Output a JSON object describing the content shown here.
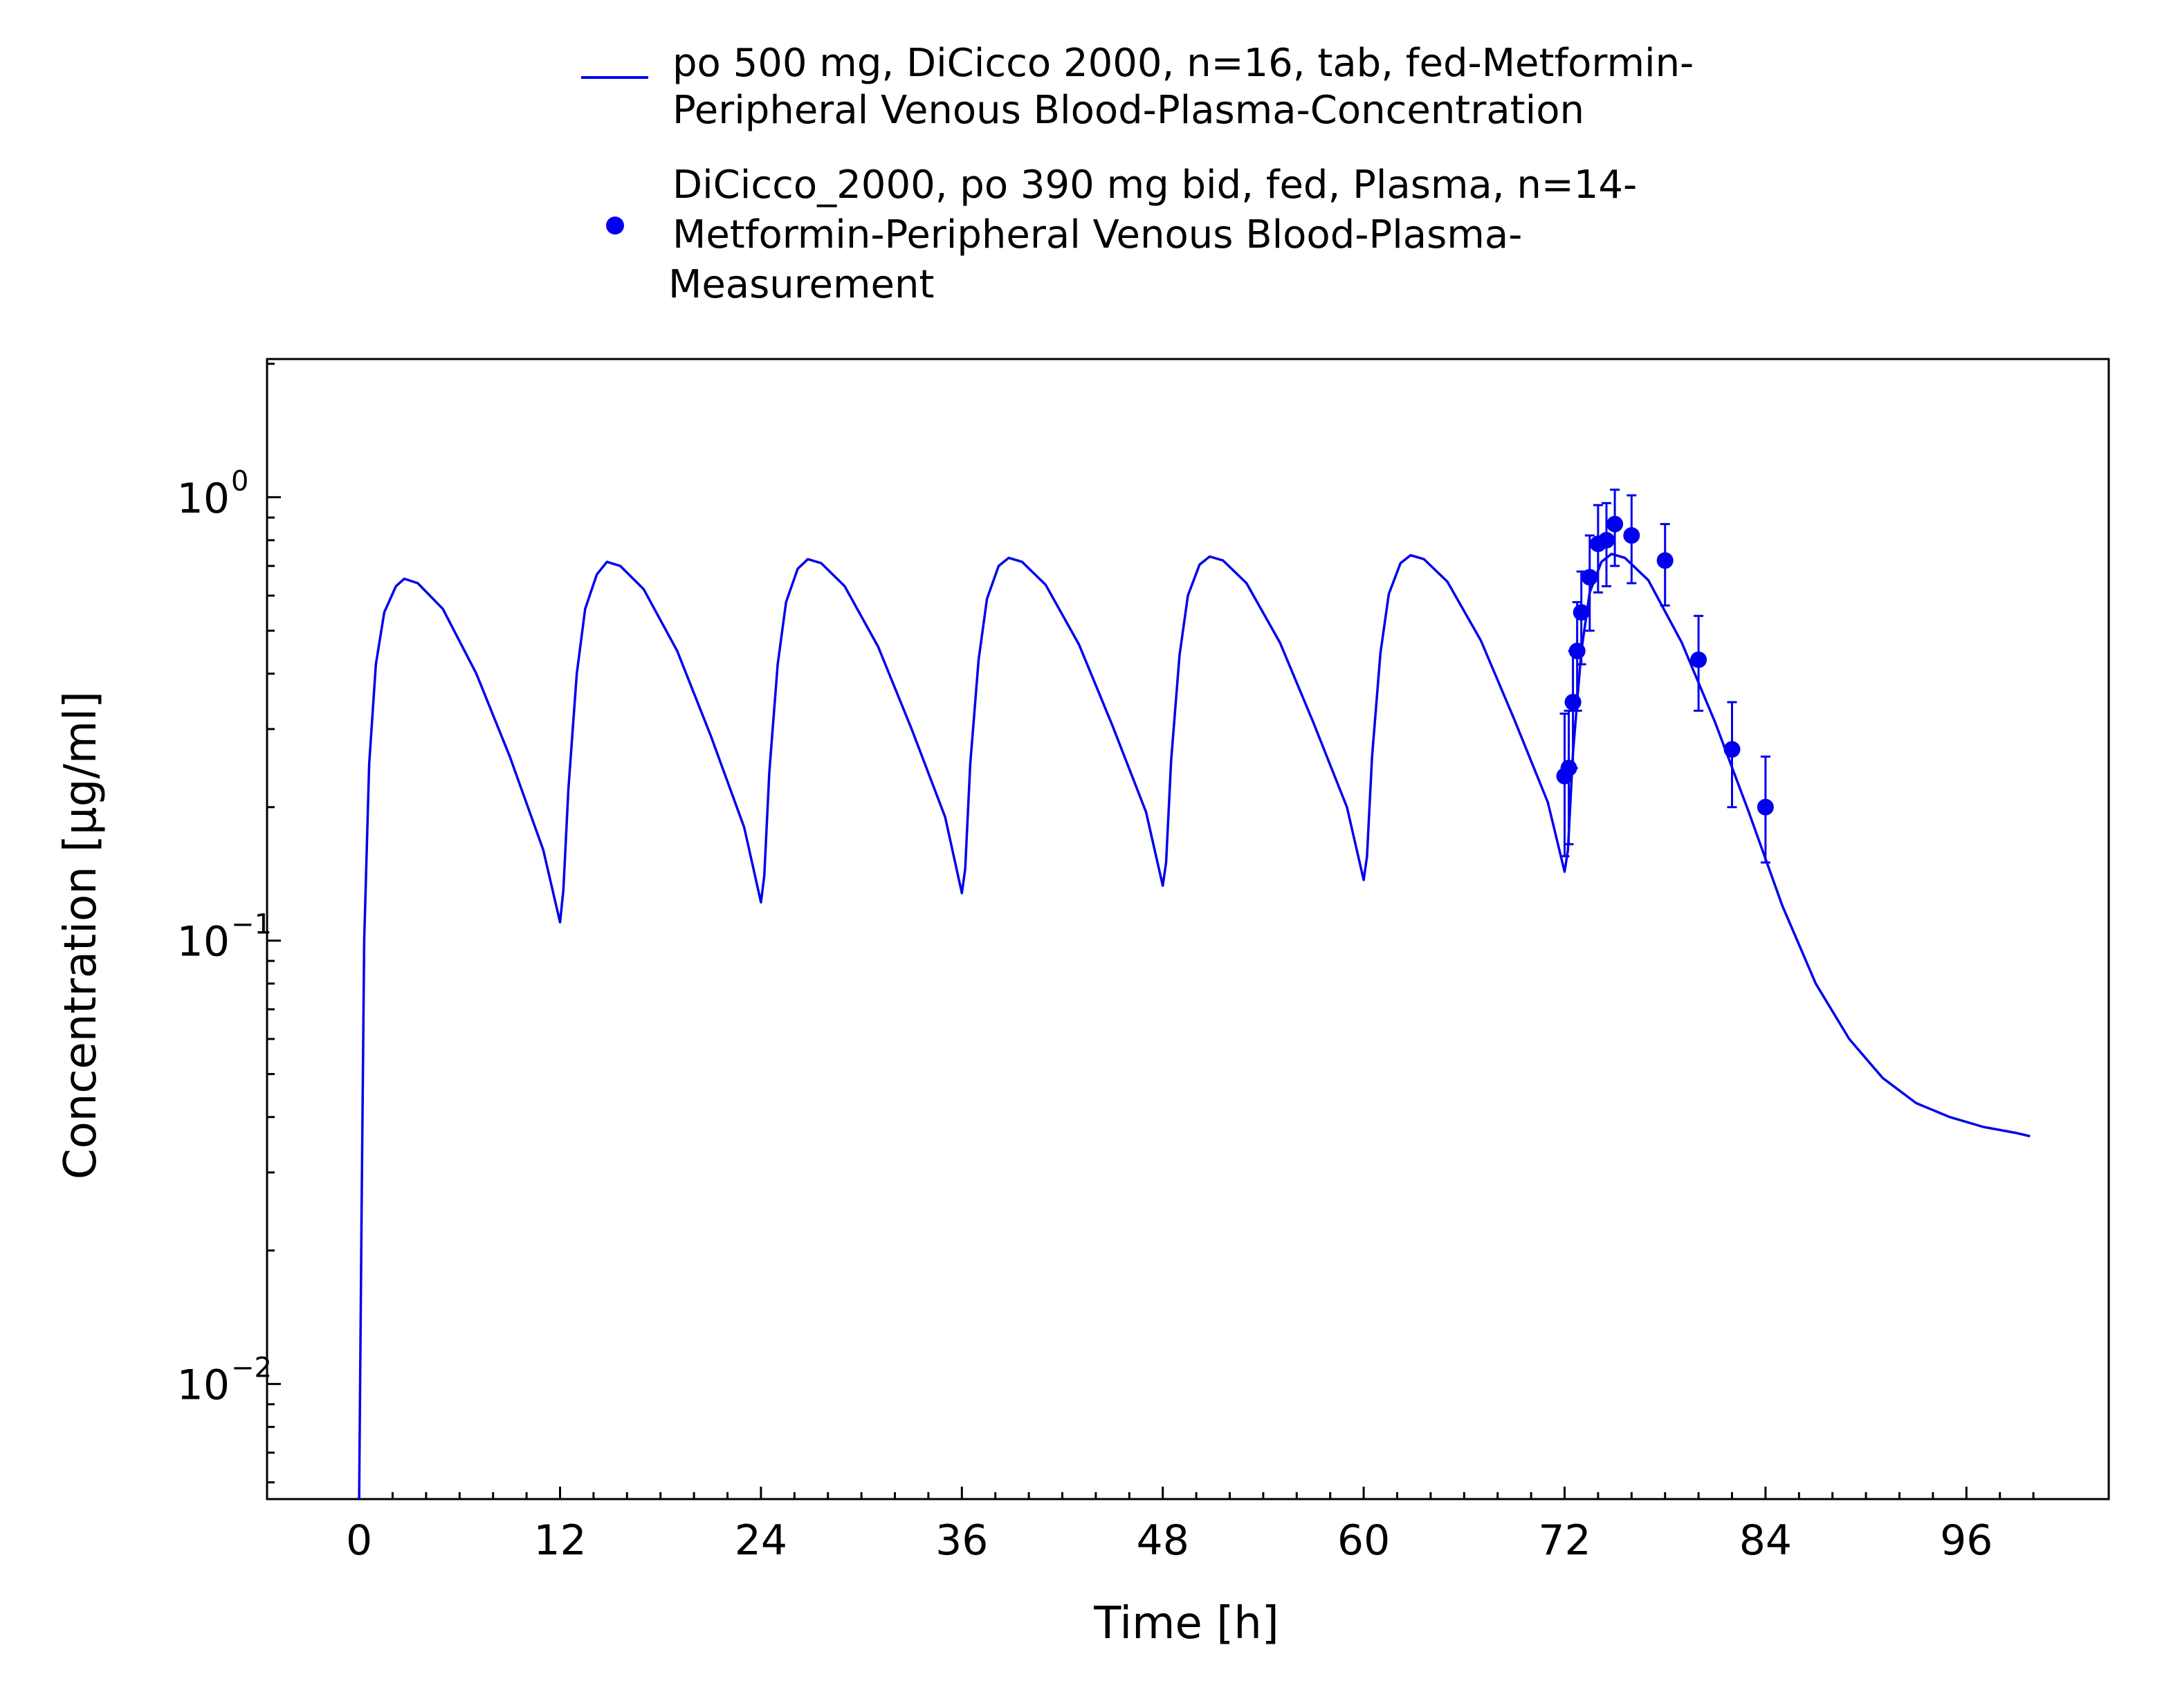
{
  "chart_data": {
    "type": "line",
    "title": "",
    "xlabel": "Time [h]",
    "ylabel": "Concentration [µg/ml]",
    "xlim": [
      -5.5,
      104.5
    ],
    "ylim": [
      0.0055,
      2.05
    ],
    "x_scale": "linear",
    "y_scale": "log",
    "x_ticks": [
      0,
      12,
      24,
      36,
      48,
      60,
      72,
      84,
      96
    ],
    "x_tick_labels": [
      "0",
      "12",
      "24",
      "36",
      "48",
      "60",
      "72",
      "84",
      "96"
    ],
    "y_ticks": [
      0.01,
      0.1,
      1
    ],
    "y_tick_labels": [
      {
        "base": "10",
        "exp": "−2"
      },
      {
        "base": "10",
        "exp": "−1"
      },
      {
        "base": "10",
        "exp": "0"
      }
    ],
    "grid": false,
    "legend_position": "top-center",
    "series": [
      {
        "type": "line",
        "name": "po 500 mg, DiCicco 2000, n=16, tab, fed-Metformin-Peripheral Venous Blood-Plasma-Concentration",
        "legend_lines": [
          "po 500 mg, DiCicco 2000, n=16, tab, fed-Metformin-",
          "Peripheral Venous Blood-Plasma-Concentration"
        ],
        "color": "#0000ee",
        "points": [
          [
            0.0,
            0.0055
          ],
          [
            0.15,
            0.025
          ],
          [
            0.3,
            0.1
          ],
          [
            0.6,
            0.25
          ],
          [
            1.0,
            0.42
          ],
          [
            1.5,
            0.55
          ],
          [
            2.2,
            0.63
          ],
          [
            2.7,
            0.655
          ],
          [
            3.5,
            0.64
          ],
          [
            5,
            0.56
          ],
          [
            7,
            0.4
          ],
          [
            9,
            0.26
          ],
          [
            11,
            0.16
          ],
          [
            12.0,
            0.11
          ],
          [
            12.2,
            0.13
          ],
          [
            12.5,
            0.22
          ],
          [
            13.0,
            0.4
          ],
          [
            13.5,
            0.56
          ],
          [
            14.2,
            0.67
          ],
          [
            14.8,
            0.715
          ],
          [
            15.6,
            0.7
          ],
          [
            17,
            0.62
          ],
          [
            19,
            0.45
          ],
          [
            21,
            0.29
          ],
          [
            23,
            0.18
          ],
          [
            24.0,
            0.122
          ],
          [
            24.2,
            0.14
          ],
          [
            24.5,
            0.24
          ],
          [
            25.0,
            0.42
          ],
          [
            25.5,
            0.58
          ],
          [
            26.2,
            0.69
          ],
          [
            26.8,
            0.725
          ],
          [
            27.6,
            0.71
          ],
          [
            29,
            0.63
          ],
          [
            31,
            0.46
          ],
          [
            33,
            0.3
          ],
          [
            35,
            0.19
          ],
          [
            36.0,
            0.128
          ],
          [
            36.2,
            0.145
          ],
          [
            36.5,
            0.25
          ],
          [
            37.0,
            0.43
          ],
          [
            37.5,
            0.59
          ],
          [
            38.2,
            0.7
          ],
          [
            38.8,
            0.73
          ],
          [
            39.6,
            0.715
          ],
          [
            41,
            0.635
          ],
          [
            43,
            0.465
          ],
          [
            45,
            0.305
          ],
          [
            47,
            0.195
          ],
          [
            48.0,
            0.133
          ],
          [
            48.2,
            0.15
          ],
          [
            48.5,
            0.255
          ],
          [
            49.0,
            0.44
          ],
          [
            49.5,
            0.6
          ],
          [
            50.2,
            0.705
          ],
          [
            50.8,
            0.735
          ],
          [
            51.6,
            0.72
          ],
          [
            53,
            0.64
          ],
          [
            55,
            0.47
          ],
          [
            57,
            0.31
          ],
          [
            59,
            0.2
          ],
          [
            60.0,
            0.137
          ],
          [
            60.2,
            0.155
          ],
          [
            60.5,
            0.26
          ],
          [
            61.0,
            0.445
          ],
          [
            61.5,
            0.605
          ],
          [
            62.2,
            0.71
          ],
          [
            62.8,
            0.74
          ],
          [
            63.6,
            0.725
          ],
          [
            65,
            0.645
          ],
          [
            67,
            0.475
          ],
          [
            69,
            0.315
          ],
          [
            71,
            0.205
          ],
          [
            72.0,
            0.143
          ],
          [
            72.2,
            0.16
          ],
          [
            72.5,
            0.265
          ],
          [
            73.0,
            0.45
          ],
          [
            73.5,
            0.61
          ],
          [
            74.2,
            0.715
          ],
          [
            74.8,
            0.745
          ],
          [
            75.6,
            0.73
          ],
          [
            77,
            0.65
          ],
          [
            79,
            0.47
          ],
          [
            81,
            0.31
          ],
          [
            83,
            0.195
          ],
          [
            85,
            0.12
          ],
          [
            87,
            0.08
          ],
          [
            89,
            0.06
          ],
          [
            91,
            0.049
          ],
          [
            93,
            0.043
          ],
          [
            95,
            0.04
          ],
          [
            97,
            0.038
          ],
          [
            99,
            0.0368
          ],
          [
            99.8,
            0.0362
          ]
        ]
      },
      {
        "type": "scatter",
        "name": "DiCicco_2000, po 390 mg bid, fed, Plasma, n=14-Metformin-Peripheral Venous Blood-Plasma-Measurement",
        "legend_lines": [
          "DiCicco_2000, po 390 mg bid, fed, Plasma, n=14-",
          "Metformin-Peripheral Venous Blood-Plasma-",
          "Measurement"
        ],
        "color": "#0000ee",
        "points": [
          {
            "x": 72.0,
            "y": 0.235,
            "lo": 0.155,
            "hi": 0.325
          },
          {
            "x": 72.25,
            "y": 0.245,
            "lo": 0.165,
            "hi": 0.33
          },
          {
            "x": 72.5,
            "y": 0.345,
            "lo": 0.245,
            "hi": 0.45
          },
          {
            "x": 72.75,
            "y": 0.45,
            "lo": 0.33,
            "hi": 0.58
          },
          {
            "x": 73.0,
            "y": 0.55,
            "lo": 0.42,
            "hi": 0.68
          },
          {
            "x": 73.5,
            "y": 0.66,
            "lo": 0.5,
            "hi": 0.82
          },
          {
            "x": 74.0,
            "y": 0.785,
            "lo": 0.61,
            "hi": 0.96
          },
          {
            "x": 74.5,
            "y": 0.8,
            "lo": 0.63,
            "hi": 0.97
          },
          {
            "x": 75.0,
            "y": 0.87,
            "lo": 0.7,
            "hi": 1.04
          },
          {
            "x": 76.0,
            "y": 0.82,
            "lo": 0.64,
            "hi": 1.01
          },
          {
            "x": 78.0,
            "y": 0.72,
            "lo": 0.57,
            "hi": 0.87
          },
          {
            "x": 80.0,
            "y": 0.43,
            "lo": 0.33,
            "hi": 0.54
          },
          {
            "x": 82.0,
            "y": 0.27,
            "lo": 0.2,
            "hi": 0.345
          },
          {
            "x": 84.0,
            "y": 0.2,
            "lo": 0.15,
            "hi": 0.26
          }
        ]
      }
    ]
  }
}
